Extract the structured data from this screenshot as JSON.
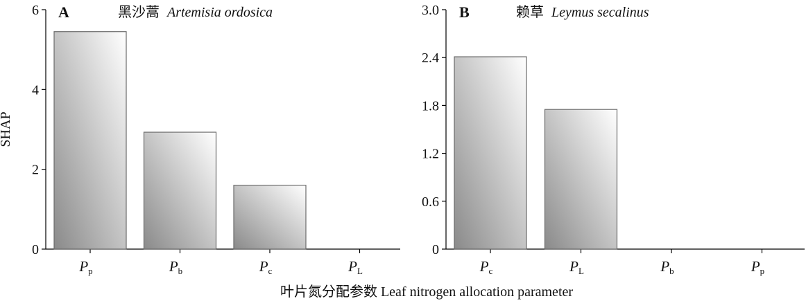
{
  "figure": {
    "xlabel": "叶片氮分配参数 Leaf nitrogen allocation parameter",
    "ylabel": "SHAP"
  },
  "chart_data": [
    {
      "type": "bar",
      "panel": "A",
      "title_cn": "黑沙蒿",
      "title_latin": "Artemisia ordosica",
      "categories": [
        {
          "main": "P",
          "sub": "p"
        },
        {
          "main": "P",
          "sub": "b"
        },
        {
          "main": "P",
          "sub": "c"
        },
        {
          "main": "P",
          "sub": "L"
        }
      ],
      "values": [
        5.45,
        2.93,
        1.6,
        0.0
      ],
      "ylabel": "SHAP",
      "ylim": [
        0,
        6
      ],
      "yticks": [
        "0",
        "2",
        "4",
        "6"
      ],
      "bar_gradient": [
        "#8a8a8a",
        "#ffffff"
      ],
      "bar_stroke": "#6a6a6a",
      "grid": false
    },
    {
      "type": "bar",
      "panel": "B",
      "title_cn": "赖草",
      "title_latin": "Leymus secalinus",
      "categories": [
        {
          "main": "P",
          "sub": "c"
        },
        {
          "main": "P",
          "sub": "L"
        },
        {
          "main": "P",
          "sub": "b"
        },
        {
          "main": "P",
          "sub": "p"
        }
      ],
      "values": [
        2.41,
        1.75,
        0.0,
        0.0
      ],
      "ylim": [
        0,
        3.0
      ],
      "yticks": [
        "0",
        "0.6",
        "1.2",
        "1.8",
        "2.4",
        "3.0"
      ],
      "bar_gradient": [
        "#8a8a8a",
        "#ffffff"
      ],
      "bar_stroke": "#6a6a6a",
      "grid": false
    }
  ]
}
